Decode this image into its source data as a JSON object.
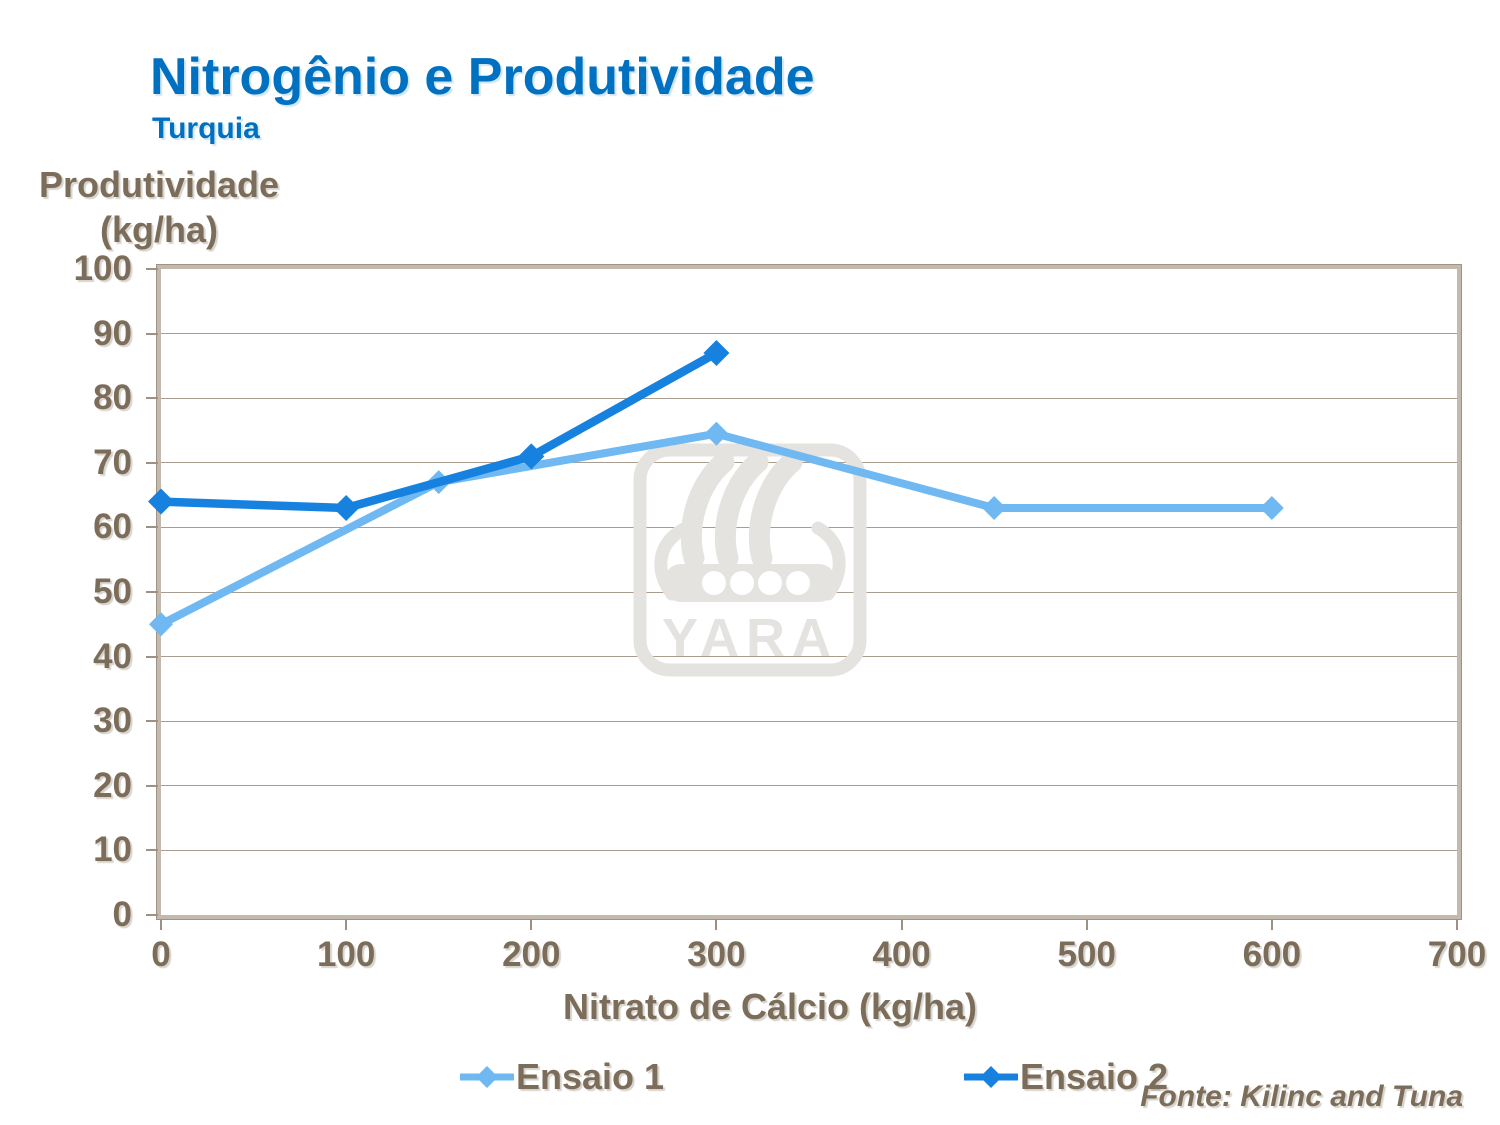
{
  "slide": {
    "title": "Nitrogênio e Produtividade",
    "subtitle": "Turquia",
    "source": "Fonte: Kilinc and Tuna",
    "watermark_text": "YARA"
  },
  "colors": {
    "title_blue": "#0070C0",
    "text_brown": "#7B6D5A",
    "gridline": "#A89D8E",
    "plot_border": "#C3BAAD",
    "tick_mark": "#9C9183",
    "ensaio1_light_blue": "#6FB8F2",
    "ensaio2_dark_blue": "#1781E0",
    "watermark_gray": "#E4E3E0"
  },
  "chart_data": {
    "type": "line",
    "title": "Nitrogênio e Produtividade",
    "subtitle": "Turquia",
    "xlabel": "Nitrato de Cálcio (kg/ha)",
    "ylabel": "Produtividade (kg/ha)",
    "ylabel_lines": [
      "Produtividade",
      "(kg/ha)"
    ],
    "xlim": [
      0,
      700
    ],
    "ylim": [
      0,
      100
    ],
    "x_ticks": [
      0,
      100,
      200,
      300,
      400,
      500,
      600,
      700
    ],
    "y_ticks": [
      0,
      10,
      20,
      30,
      40,
      50,
      60,
      70,
      80,
      90,
      100
    ],
    "grid": "horizontal-only",
    "legend_position": "bottom",
    "series": [
      {
        "name": "Ensaio 1",
        "color": "#6FB8F2",
        "marker": "diamond",
        "x": [
          0,
          150,
          300,
          450,
          600
        ],
        "y": [
          45,
          67,
          74.5,
          63,
          63
        ]
      },
      {
        "name": "Ensaio 2",
        "color": "#1781E0",
        "marker": "diamond",
        "x": [
          0,
          100,
          200,
          300
        ],
        "y": [
          64,
          63,
          71,
          87
        ]
      }
    ],
    "source": "Fonte: Kilinc and Tuna"
  }
}
